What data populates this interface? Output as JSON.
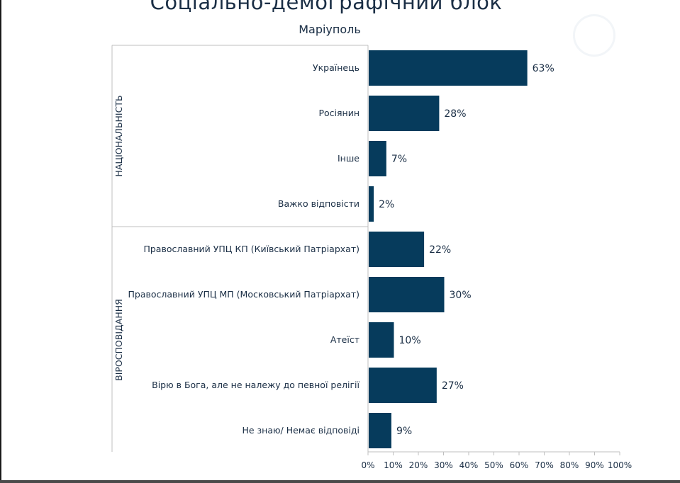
{
  "slide": {
    "title": "Соціально-демографічний блок",
    "subtitle": "Маріуполь"
  },
  "colors": {
    "bar": "#063b5c",
    "text": "#1a2e45",
    "axis": "#bfbfbf"
  },
  "chart_data": {
    "type": "bar",
    "orientation": "horizontal",
    "title": "",
    "xlabel": "",
    "ylabel": "",
    "xlim": [
      0,
      100
    ],
    "x_ticks": [
      "0%",
      "10%",
      "20%",
      "30%",
      "40%",
      "50%",
      "60%",
      "70%",
      "80%",
      "90%",
      "100%"
    ],
    "grid": false,
    "value_suffix": "%",
    "groups": [
      {
        "name": "НАЦІОНАЛЬНІСТЬ",
        "categories": [
          "Українець",
          "Росіянин",
          "Інше",
          "Важко відповісти"
        ],
        "values": [
          63,
          28,
          7,
          2
        ]
      },
      {
        "name": "ВІРОСПОВІДАННЯ",
        "categories": [
          "Православний УПЦ КП (Київський Патріархат)",
          "Православний УПЦ МП (Московський Патріархат)",
          "Атеїст",
          "Вірю в Бога, але не належу до певної релігії",
          "Не знаю/ Немає відповіді"
        ],
        "values": [
          22,
          30,
          10,
          27,
          9
        ]
      }
    ]
  }
}
